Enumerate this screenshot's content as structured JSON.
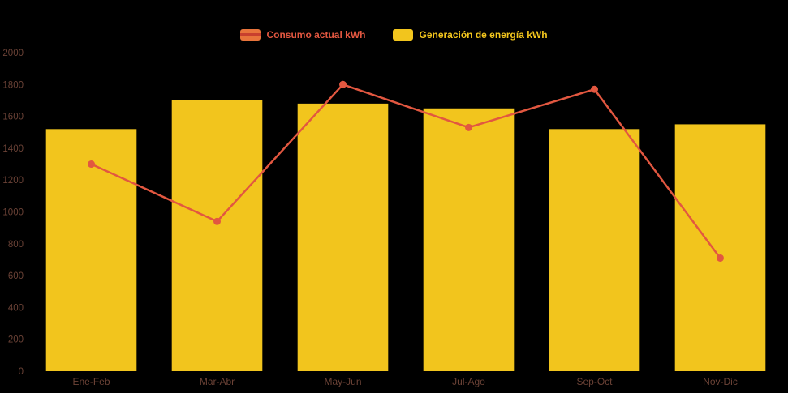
{
  "legend": {
    "items": [
      {
        "label": "Consumo actual kWh",
        "color": "#e25740",
        "swatch_fill": "#e8743b",
        "swatch_line": "#c8402e"
      },
      {
        "label": "Generación de energía kWh",
        "color": "#f2c51d",
        "swatch_fill": "#f2c51d",
        "swatch_line": "#f2c51d"
      }
    ]
  },
  "chart_data": {
    "type": "bar+line",
    "categories": [
      "Ene-Feb",
      "Mar-Abr",
      "May-Jun",
      "Jul-Ago",
      "Sep-Oct",
      "Nov-Dic"
    ],
    "series": [
      {
        "name": "Generación de energía kWh",
        "type": "bar",
        "color": "#f2c51d",
        "values": [
          1520,
          1700,
          1680,
          1650,
          1520,
          1550
        ]
      },
      {
        "name": "Consumo actual kWh",
        "type": "line",
        "color": "#e25740",
        "values": [
          1300,
          940,
          1800,
          1530,
          1770,
          710
        ]
      }
    ],
    "title": "",
    "xlabel": "",
    "ylabel": "",
    "ylim": [
      0,
      2000
    ],
    "yticks": [
      0,
      200,
      400,
      600,
      800,
      1000,
      1200,
      1400,
      1600,
      1800,
      2000
    ],
    "grid": "off",
    "legend_position": "top-center",
    "background_color": "#000000",
    "axis_label_color": "#6b4236"
  }
}
